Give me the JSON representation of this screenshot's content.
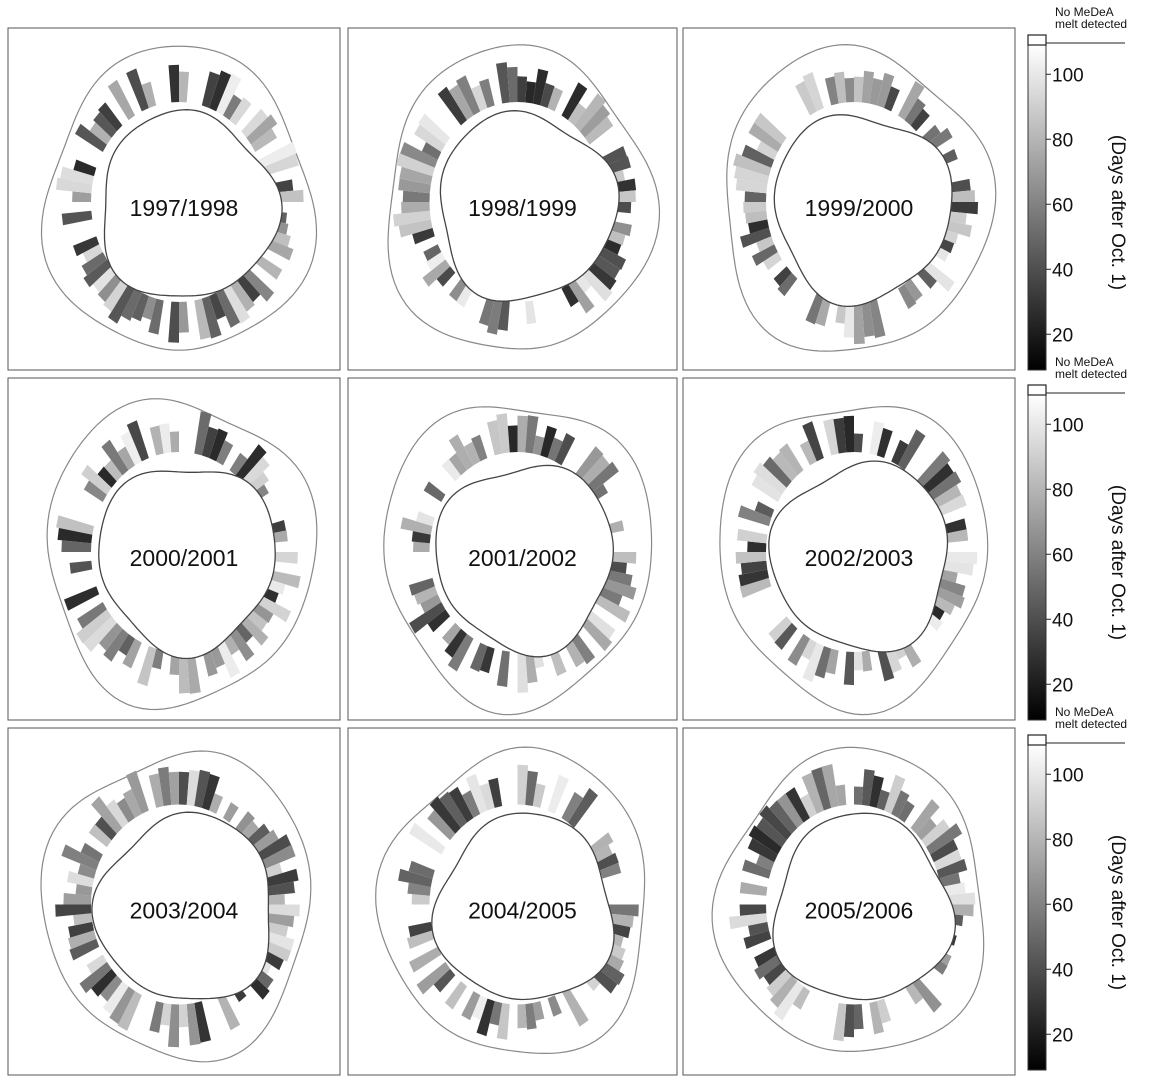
{
  "panels": [
    "1997/1998",
    "1998/1999",
    "1999/2000",
    "2000/2001",
    "2001/2002",
    "2002/2003",
    "2003/2004",
    "2004/2005",
    "2005/2006"
  ],
  "colorbars": [
    {
      "no_melt_label": [
        "No MeDeA",
        "melt detected"
      ],
      "label": "(Days after  Oct. 1)",
      "range": [
        9,
        109
      ],
      "ticks": [
        20,
        40,
        60,
        80,
        100
      ]
    },
    {
      "no_melt_label": [
        "No MeDeA",
        "melt detected"
      ],
      "label": "(Days after  Oct. 1)",
      "range": [
        9,
        109
      ],
      "ticks": [
        20,
        40,
        60,
        80,
        100
      ]
    },
    {
      "no_melt_label": [
        "No MeDeA",
        "melt detected"
      ],
      "label": "(Days after  Oct. 1)",
      "range": [
        9,
        109
      ],
      "ticks": [
        20,
        40,
        60,
        80,
        100
      ]
    }
  ]
}
